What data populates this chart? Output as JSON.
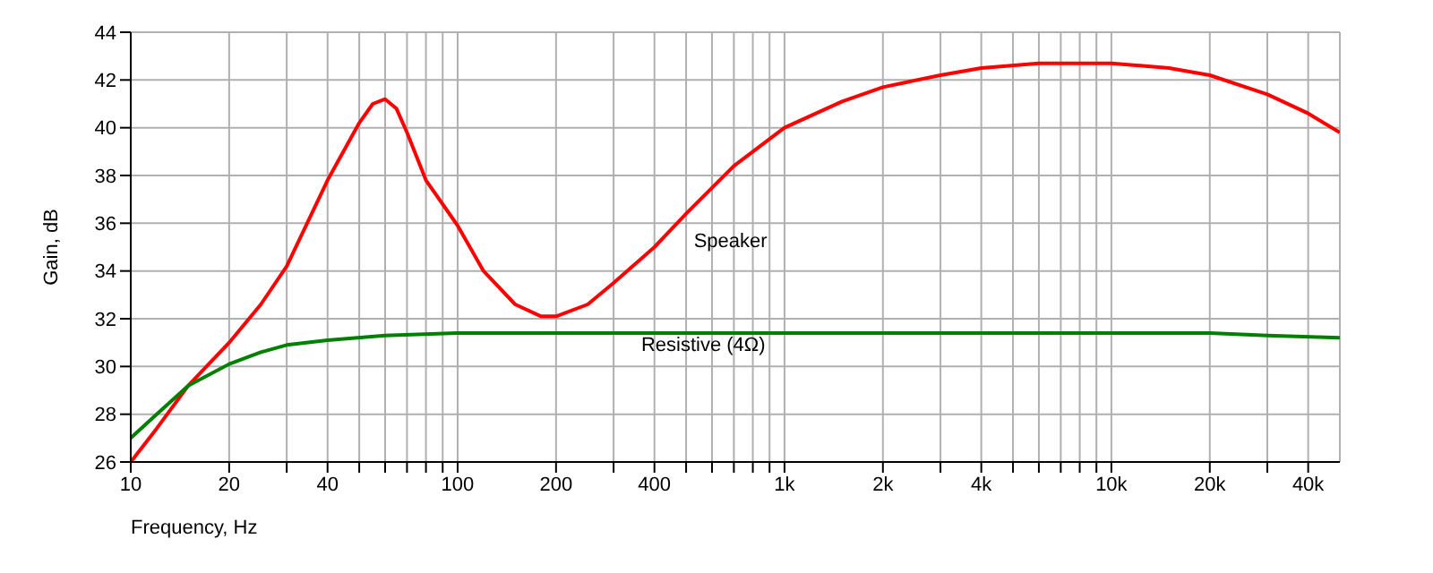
{
  "chart_data": {
    "type": "line",
    "xlabel": "Frequency, Hz",
    "ylabel": "Gain, dB",
    "log": "x",
    "grid": true,
    "legend": false,
    "marker": "none",
    "line_style": "solid",
    "xlim": [
      10,
      50000
    ],
    "ylim": [
      26,
      44
    ],
    "xticks": [
      10,
      20,
      {
        "value": 30,
        "label": null
      },
      40,
      {
        "value": 50,
        "label": null
      },
      {
        "value": 60,
        "label": null
      },
      {
        "value": 70,
        "label": null
      },
      {
        "value": 80,
        "label": null
      },
      {
        "value": 90,
        "label": null
      },
      100,
      200,
      {
        "value": 300,
        "label": null
      },
      400,
      {
        "value": 500,
        "label": null
      },
      {
        "value": 600,
        "label": null
      },
      {
        "value": 700,
        "label": null
      },
      {
        "value": 800,
        "label": null
      },
      {
        "value": 900,
        "label": null
      },
      {
        "value": 1000,
        "label": "1k"
      },
      {
        "value": 2000,
        "label": "2k"
      },
      {
        "value": 3000,
        "label": null
      },
      {
        "value": 4000,
        "label": "4k"
      },
      {
        "value": 5000,
        "label": null
      },
      {
        "value": 6000,
        "label": null
      },
      {
        "value": 7000,
        "label": null
      },
      {
        "value": 8000,
        "label": null
      },
      {
        "value": 9000,
        "label": null
      },
      {
        "value": 10000,
        "label": "10k"
      },
      {
        "value": 20000,
        "label": "20k"
      },
      {
        "value": 30000,
        "label": null
      },
      {
        "value": 40000,
        "label": "40k"
      }
    ],
    "yticks": [
      26,
      28,
      30,
      32,
      34,
      36,
      38,
      40,
      42,
      44
    ],
    "series": [
      {
        "name": "Speaker",
        "color": "#ff0000",
        "x": [
          10,
          12,
          15,
          20,
          25,
          30,
          40,
          50,
          55,
          60,
          65,
          70,
          80,
          100,
          120,
          150,
          180,
          200,
          250,
          300,
          400,
          500,
          700,
          1000,
          1500,
          2000,
          3000,
          4000,
          6000,
          10000,
          15000,
          20000,
          30000,
          40000,
          50000
        ],
        "values": [
          26.0,
          27.4,
          29.2,
          31.0,
          32.6,
          34.2,
          37.8,
          40.2,
          41.0,
          41.2,
          40.8,
          39.8,
          37.8,
          35.9,
          34.0,
          32.6,
          32.1,
          32.1,
          32.6,
          33.5,
          35.0,
          36.4,
          38.4,
          40.0,
          41.1,
          41.7,
          42.2,
          42.5,
          42.7,
          42.7,
          42.5,
          42.2,
          41.4,
          40.6,
          39.8
        ]
      },
      {
        "name": "Resistive (4Ω)",
        "color": "#008000",
        "x": [
          10,
          12,
          15,
          20,
          25,
          30,
          40,
          60,
          100,
          200,
          1000,
          10000,
          20000,
          30000,
          50000
        ],
        "values": [
          27.0,
          28.0,
          29.2,
          30.1,
          30.6,
          30.9,
          31.1,
          31.3,
          31.4,
          31.4,
          31.4,
          31.4,
          31.4,
          31.3,
          31.2
        ]
      }
    ]
  }
}
